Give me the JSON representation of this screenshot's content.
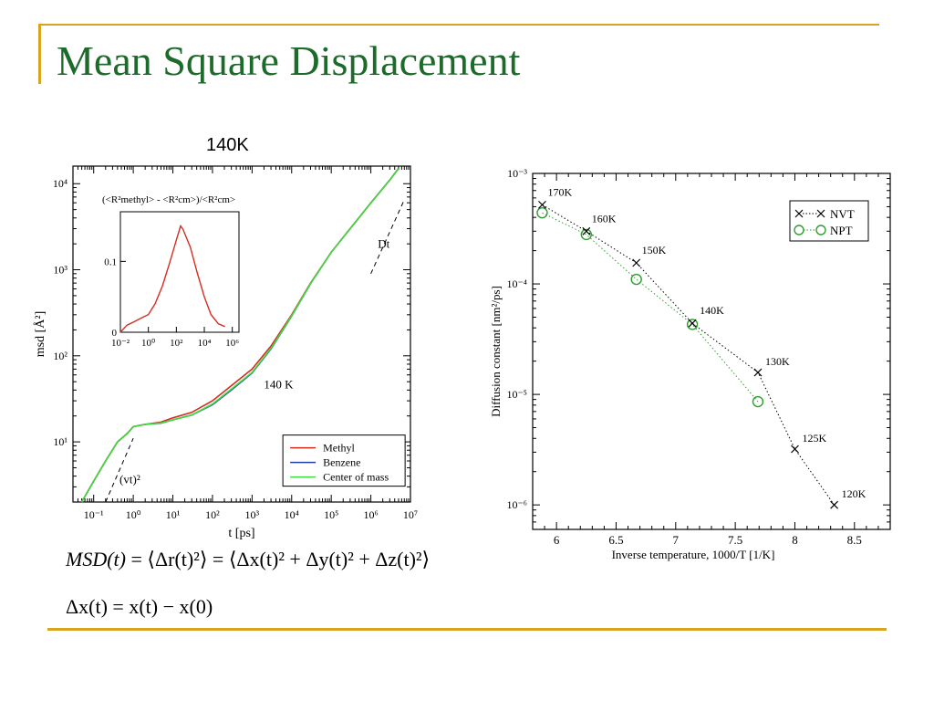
{
  "slide": {
    "title": "Mean Square Displacement",
    "chart_label": "140K",
    "accent_color": "#d9a521",
    "title_color": "#1d6b2a"
  },
  "formulas": {
    "line1_lhs": "MSD(t)",
    "line1_mid": "⟨Δr(t)²⟩",
    "line1_rhs": "⟨Δx(t)² + Δy(t)² + Δz(t)²⟩",
    "line2": "Δx(t) = x(t) − x(0)"
  },
  "chart_data": [
    {
      "type": "line",
      "xscale": "log",
      "yscale": "log",
      "xlabel": "t [ps]",
      "ylabel": "msd [Å²]",
      "xlim": [
        0.03,
        10000000
      ],
      "ylim": [
        2,
        16000
      ],
      "xticks": [
        "10⁻¹",
        "10⁰",
        "10¹",
        "10²",
        "10³",
        "10⁴",
        "10⁵",
        "10⁶",
        "10⁷"
      ],
      "yticks": [
        "10¹",
        "10²",
        "10³",
        "10⁴"
      ],
      "annotation_temp": "140 K",
      "annotation_vt": "(vt)²",
      "annotation_dt": "Dt",
      "legend_position": "bottom-right",
      "series": [
        {
          "name": "Methyl",
          "color": "#d62d20",
          "x": [
            0.05,
            0.1,
            0.2,
            0.4,
            0.7,
            1,
            2,
            5,
            10,
            30,
            100,
            300,
            1000,
            3000,
            10000,
            30000,
            100000,
            300000,
            1000000,
            3000000,
            5000000
          ],
          "y": [
            2,
            3.5,
            6,
            10,
            12.5,
            15,
            16,
            17,
            19,
            22,
            30,
            45,
            70,
            130,
            300,
            700,
            1600,
            3000,
            6000,
            11000,
            15000
          ]
        },
        {
          "name": "Benzene",
          "color": "#1f3fa6",
          "x": [
            0.05,
            0.1,
            0.2,
            0.4,
            0.7,
            1,
            2,
            5,
            10,
            30,
            100,
            300,
            1000,
            3000,
            10000,
            30000,
            100000,
            300000,
            1000000,
            3000000,
            5000000
          ],
          "y": [
            2,
            3.5,
            6,
            10,
            12.5,
            15,
            16,
            16.5,
            18,
            20.5,
            27,
            40,
            63,
            120,
            290,
            690,
            1600,
            3000,
            6000,
            11000,
            15000
          ]
        },
        {
          "name": "Center of mass",
          "color": "#3ddb3d",
          "x": [
            0.05,
            0.1,
            0.2,
            0.4,
            0.7,
            1,
            2,
            5,
            10,
            30,
            100,
            300,
            1000,
            3000,
            10000,
            30000,
            100000,
            300000,
            1000000,
            3000000,
            5000000
          ],
          "y": [
            2,
            3.5,
            6,
            10,
            12.5,
            15,
            16,
            16.6,
            18,
            20.5,
            27.5,
            41,
            64,
            122,
            292,
            692,
            1600,
            3000,
            6000,
            11000,
            15000
          ]
        }
      ],
      "guide_vt": {
        "x": [
          0.2,
          1
        ],
        "y": [
          2,
          11
        ]
      },
      "guide_dt": {
        "x": [
          1000000,
          7000000
        ],
        "y": [
          900,
          6500
        ]
      },
      "inset": {
        "type": "line",
        "xscale": "log",
        "title": "(<R²methyl> - <R²cm>)/<R²cm>",
        "xlim": [
          0.01,
          3000000
        ],
        "ylim": [
          0,
          0.17
        ],
        "yticks": [
          "0",
          "0.1"
        ],
        "xticks": [
          "10⁻²",
          "10⁰",
          "10²",
          "10⁴",
          "10⁶"
        ],
        "series": [
          {
            "color": "#d62d20",
            "x": [
              0.01,
              0.03,
              0.1,
              0.3,
              1,
              3,
              10,
              30,
              60,
              100,
              200,
              300,
              1000,
              3000,
              10000,
              30000,
              100000,
              300000
            ],
            "y": [
              0.0,
              0.01,
              0.015,
              0.02,
              0.025,
              0.04,
              0.065,
              0.095,
              0.115,
              0.13,
              0.15,
              0.145,
              0.12,
              0.085,
              0.05,
              0.025,
              0.012,
              0.008
            ]
          }
        ]
      }
    },
    {
      "type": "scatter",
      "yscale": "log",
      "xlabel": "Inverse temperature, 1000/T [1/K]",
      "ylabel": "Diffusion constant [nm²/ps]",
      "xlim": [
        5.8,
        8.8
      ],
      "ylim": [
        6e-07,
        0.001
      ],
      "xticks": [
        "6",
        "6.5",
        "7",
        "7.5",
        "8",
        "8.5"
      ],
      "yticks": [
        "10⁻⁶",
        "10⁻⁵",
        "10⁻⁴",
        "10⁻³"
      ],
      "legend_position": "top-right",
      "series": [
        {
          "name": "NVT",
          "marker": "x",
          "color": "#000000",
          "x": [
            5.88,
            6.25,
            6.67,
            7.14,
            7.69,
            8.0,
            8.33
          ],
          "y": [
            0.00052,
            0.0003,
            0.000155,
            4.4e-05,
            1.58e-05,
            3.2e-06,
            1e-06
          ],
          "labels": [
            "170K",
            "160K",
            "150K",
            "140K",
            "130K",
            "125K",
            "120K"
          ]
        },
        {
          "name": "NPT",
          "marker": "o",
          "color": "#2e9e2e",
          "x": [
            5.88,
            6.25,
            6.67,
            7.14,
            7.69
          ],
          "y": [
            0.00044,
            0.00028,
            0.00011,
            4.3e-05,
            8.6e-06
          ]
        }
      ]
    }
  ]
}
